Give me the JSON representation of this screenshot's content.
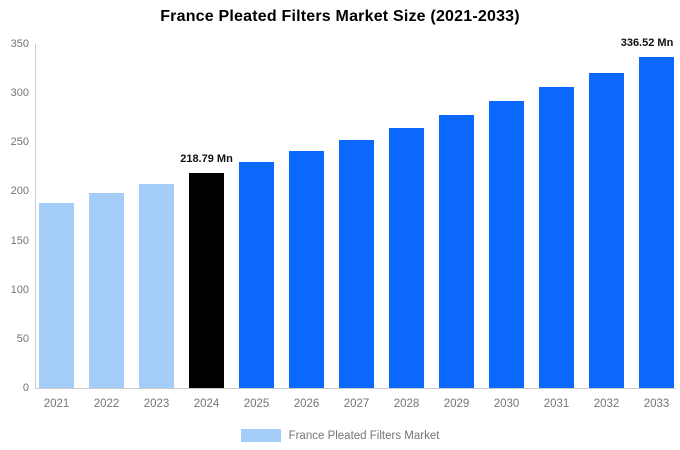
{
  "title": "France Pleated Filters Market Size (2021-2033)",
  "legend": {
    "label": "France Pleated Filters Market",
    "swatch_color": "#A5CDFA"
  },
  "colors": {
    "historical_bar": "#A5CDFA",
    "base_year_bar": "#000000",
    "forecast_bar": "#0A68FC",
    "axis_line": "#CCCCCC",
    "tick_text": "#757575",
    "title_text": "#000000",
    "annotation_text": "#111111"
  },
  "chart_data": {
    "type": "bar",
    "title": "France Pleated Filters Market Size (2021-2033)",
    "xlabel": "",
    "ylabel": "",
    "unit": "Mn",
    "categories": [
      "2021",
      "2022",
      "2023",
      "2024",
      "2025",
      "2026",
      "2027",
      "2028",
      "2029",
      "2030",
      "2031",
      "2032",
      "2033"
    ],
    "values": [
      188.5,
      198.0,
      207.9,
      218.79,
      229.5,
      240.7,
      252.5,
      264.9,
      277.9,
      291.5,
      305.8,
      320.8,
      336.52
    ],
    "bar_colors": [
      "#A5CDFA",
      "#A5CDFA",
      "#A5CDFA",
      "#000000",
      "#0A68FC",
      "#0A68FC",
      "#0A68FC",
      "#0A68FC",
      "#0A68FC",
      "#0A68FC",
      "#0A68FC",
      "#0A68FC",
      "#0A68FC"
    ],
    "annotations": [
      {
        "index": 3,
        "text": "218.79 Mn"
      },
      {
        "index": 12,
        "text": "336.52 Mn"
      }
    ],
    "ylim": [
      0,
      350
    ],
    "yticks": [
      0,
      50,
      100,
      150,
      200,
      250,
      300,
      350
    ],
    "grid": false,
    "legend_position": "bottom",
    "legend_entries": [
      "France Pleated Filters Market"
    ]
  }
}
